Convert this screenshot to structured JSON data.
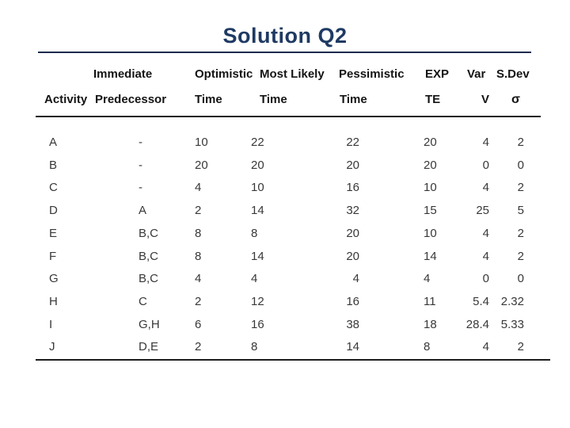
{
  "slide": {
    "title": "Solution Q2"
  },
  "colors": {
    "title": "#1f3a63",
    "header_text": "#141414",
    "body_text": "#383838",
    "rule_lines": "#1c1c1c",
    "background": "#ffffff"
  },
  "table": {
    "header_row1": {
      "immediate": "Immediate",
      "optimistic": "Optimistic",
      "most_likely": "Most Likely",
      "pessimistic": "Pessimistic",
      "exp": "EXP",
      "var": "Var",
      "sdev": "S.Dev"
    },
    "header_row2": {
      "activity": "Activity",
      "predecessor": "Predecessor",
      "optimistic_time": "Time",
      "most_likely_time": "Time",
      "pessimistic_time": "Time",
      "te": "TE",
      "v": "V",
      "sigma": "σ"
    },
    "rows": [
      {
        "activity": "A",
        "predecessor": "-",
        "optimistic": "10",
        "most_likely": "22",
        "pessimistic": "22",
        "te": "20",
        "var": "4",
        "sdev": "2"
      },
      {
        "activity": "B",
        "predecessor": "-",
        "optimistic": "20",
        "most_likely": "20",
        "pessimistic": "20",
        "te": "20",
        "var": "0",
        "sdev": "0"
      },
      {
        "activity": "C",
        "predecessor": "-",
        "optimistic": "4",
        "most_likely": "10",
        "pessimistic": "16",
        "te": "10",
        "var": "4",
        "sdev": "2"
      },
      {
        "activity": "D",
        "predecessor": "A",
        "optimistic": "2",
        "most_likely": "14",
        "pessimistic": "32",
        "te": "15",
        "var": "25",
        "sdev": "5"
      },
      {
        "activity": "E",
        "predecessor": "B,C",
        "optimistic": "8",
        "most_likely": "8",
        "pessimistic": "20",
        "te": "10",
        "var": "4",
        "sdev": "2"
      },
      {
        "activity": "F",
        "predecessor": "B,C",
        "optimistic": "8",
        "most_likely": "14",
        "pessimistic": "20",
        "te": "14",
        "var": "4",
        "sdev": "2"
      },
      {
        "activity": "G",
        "predecessor": "B,C",
        "optimistic": "4",
        "most_likely": "4",
        "pessimistic": "4",
        "te": "4",
        "var": "0",
        "sdev": "0"
      },
      {
        "activity": "H",
        "predecessor": "C",
        "optimistic": "2",
        "most_likely": "12",
        "pessimistic": "16",
        "te": "11",
        "var": "5.4",
        "sdev": "2.32"
      },
      {
        "activity": "I",
        "predecessor": "G,H",
        "optimistic": "6",
        "most_likely": "16",
        "pessimistic": "38",
        "te": "18",
        "var": "28.4",
        "sdev": "5.33"
      },
      {
        "activity": "J",
        "predecessor": "D,E",
        "optimistic": "2",
        "most_likely": "8",
        "pessimistic": "14",
        "te": "8",
        "var": "4",
        "sdev": "2"
      }
    ]
  }
}
